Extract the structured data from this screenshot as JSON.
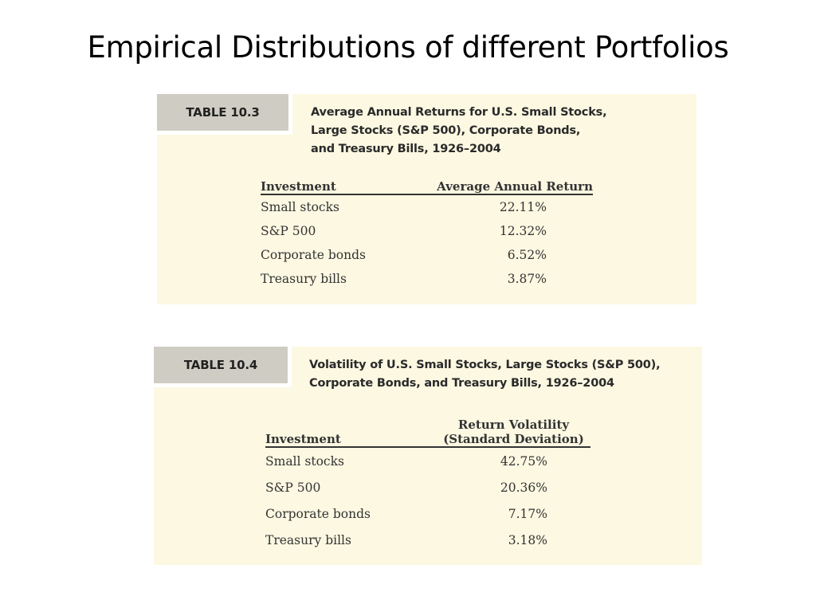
{
  "slide": {
    "title": "Empirical Distributions of different Portfolios"
  },
  "table1": {
    "tag": "TABLE 10.3",
    "caption_lines": [
      "Average Annual Returns for U.S. Small Stocks,",
      "Large Stocks (S&P 500), Corporate Bonds,",
      "and Treasury Bills, 1926–2004"
    ],
    "headers": [
      "Investment",
      "Average Annual Return"
    ],
    "rows": [
      {
        "investment": "Small stocks",
        "value": "22.11%"
      },
      {
        "investment": "S&P 500",
        "value": "12.32%"
      },
      {
        "investment": "Corporate bonds",
        "value": "6.52%"
      },
      {
        "investment": "Treasury bills",
        "value": "3.87%"
      }
    ]
  },
  "table2": {
    "tag": "TABLE 10.4",
    "caption_lines": [
      "Volatility of U.S. Small Stocks, Large Stocks (S&P 500),",
      "Corporate Bonds, and Treasury Bills, 1926–2004"
    ],
    "headers": [
      "Investment",
      "Return Volatility",
      "(Standard Deviation)"
    ],
    "rows": [
      {
        "investment": "Small stocks",
        "value": "42.75%"
      },
      {
        "investment": "S&P 500",
        "value": "20.36%"
      },
      {
        "investment": "Corporate bonds",
        "value": "7.17%"
      },
      {
        "investment": "Treasury bills",
        "value": "3.18%"
      }
    ]
  },
  "colors": {
    "panel_background": "#fcf8e2",
    "tag_background": "#cfcdc3"
  }
}
